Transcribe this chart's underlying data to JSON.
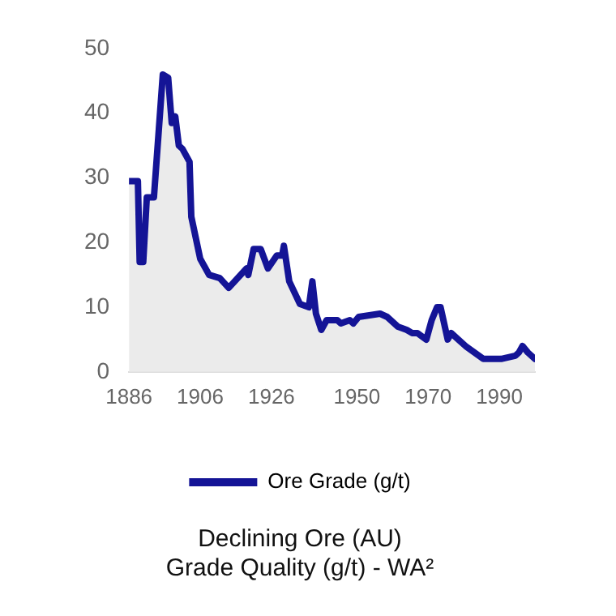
{
  "chart_data": {
    "type": "area",
    "title": "Declining Ore (AU)\nGrade Quality (g/t) - WA²",
    "x": [
      1886,
      1888.5,
      1889,
      1890,
      1891,
      1893,
      1895.5,
      1897,
      1898,
      1899,
      1900,
      1901,
      1903,
      1903.5,
      1906,
      1908.5,
      1911.5,
      1914,
      1919,
      1919.5,
      1921,
      1923,
      1925,
      1927.5,
      1929,
      1929.5,
      1931,
      1934,
      1936.5,
      1937.5,
      1938.5,
      1940,
      1941.5,
      1944.5,
      1945.5,
      1948,
      1949,
      1950.5,
      1956.5,
      1958.5,
      1961.5,
      1964,
      1965.5,
      1967,
      1969.5,
      1971,
      1972.5,
      1973.5,
      1975.5,
      1976.5,
      1978.5,
      1980.5,
      1985.5,
      1990.5,
      1994.5,
      1995.5,
      1996.5,
      1998,
      2000
    ],
    "series": [
      {
        "name": "Ore Grade (g/t)",
        "color": "#141496",
        "values": [
          29.5,
          29.5,
          17,
          17,
          27,
          27,
          46,
          45.5,
          38.5,
          39.5,
          35,
          34.5,
          32.5,
          24,
          17.5,
          15,
          14.5,
          13,
          16,
          15,
          19,
          19,
          16,
          18,
          18,
          19.5,
          14,
          10.5,
          10,
          14,
          9,
          6.5,
          8,
          8,
          7.5,
          8,
          7.5,
          8.5,
          9,
          8.5,
          7,
          6.5,
          6,
          6,
          5,
          8,
          10,
          10,
          5,
          6,
          5,
          4,
          2,
          2,
          2.5,
          3,
          4,
          3,
          2
        ]
      }
    ],
    "xlim": [
      1886,
      2000
    ],
    "xticks": [
      1886,
      1906,
      1926,
      1950,
      1970,
      1990
    ],
    "ylim": [
      0,
      50
    ],
    "yticks": [
      0,
      10,
      20,
      30,
      40,
      50
    ],
    "grid": false,
    "legend": "bottom"
  }
}
